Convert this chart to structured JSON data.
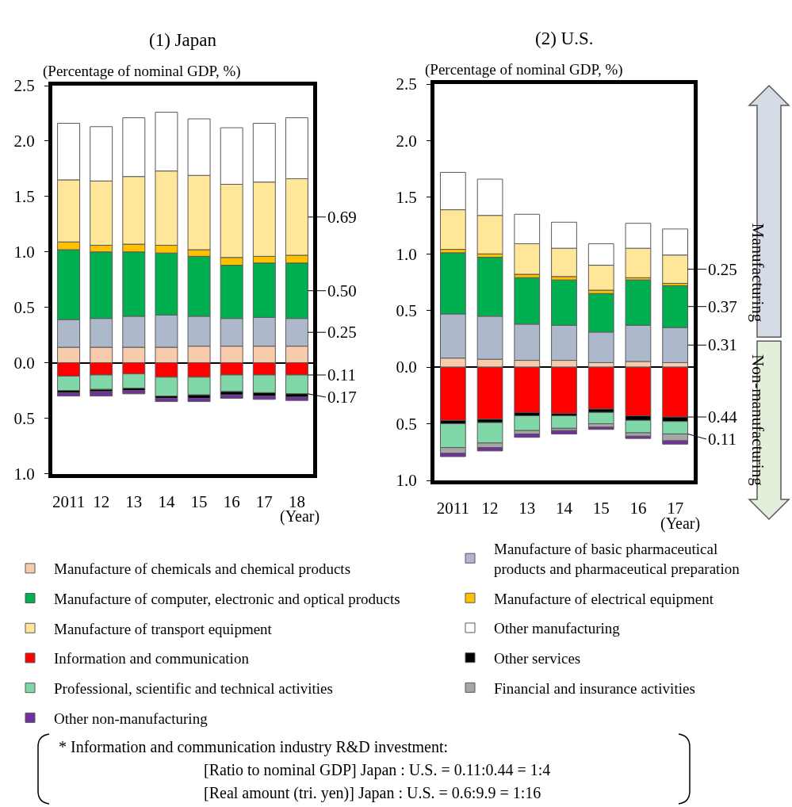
{
  "chart_data": [
    {
      "type": "bar",
      "stacked": true,
      "title": "(1) Japan",
      "ylabel": "(Percentage of nominal GDP, %)",
      "xlabel": "(Year)",
      "categories": [
        "2011",
        "12",
        "13",
        "14",
        "15",
        "16",
        "17",
        "18"
      ],
      "ylim": [
        -1.0,
        2.5
      ],
      "yticks": [
        {
          "value": -1.0,
          "label": "1.0"
        },
        {
          "value": -0.5,
          "label": "0.5"
        },
        {
          "value": 0,
          "label": "0.0"
        },
        0.5,
        {
          "value": 1.0,
          "label": "1.0"
        },
        1.5,
        {
          "value": 2.0,
          "label": "2.0"
        },
        2.5
      ],
      "series": [
        {
          "color": "#f8cbad",
          "values": [
            0.14,
            0.14,
            0.14,
            0.14,
            0.15,
            0.15,
            0.15,
            0.15
          ]
        },
        {
          "color": "#adb9ca",
          "values": [
            0.25,
            0.26,
            0.28,
            0.29,
            0.27,
            0.25,
            0.26,
            0.25
          ],
          "value_labels": [
            null,
            null,
            null,
            null,
            null,
            null,
            null,
            "0.25"
          ]
        },
        {
          "color": "#00b050",
          "values": [
            0.63,
            0.6,
            0.58,
            0.56,
            0.54,
            0.48,
            0.49,
            0.5
          ],
          "value_labels": [
            null,
            null,
            null,
            null,
            null,
            null,
            null,
            "0.50"
          ]
        },
        {
          "color": "#ffc000",
          "values": [
            0.07,
            0.06,
            0.07,
            0.07,
            0.06,
            0.07,
            0.06,
            0.07
          ]
        },
        {
          "color": "#ffe699",
          "values": [
            0.56,
            0.58,
            0.61,
            0.67,
            0.67,
            0.66,
            0.67,
            0.69
          ],
          "value_labels": [
            null,
            null,
            null,
            null,
            null,
            null,
            null,
            "0.69"
          ]
        },
        {
          "color": "#ffffff",
          "values": [
            0.51,
            0.49,
            0.53,
            0.53,
            0.51,
            0.51,
            0.53,
            0.55
          ]
        },
        {
          "color": "#ff0000",
          "values": [
            -0.12,
            -0.11,
            -0.1,
            -0.13,
            -0.13,
            -0.11,
            -0.11,
            -0.11
          ]
        },
        {
          "color": "#80d7a7",
          "values": [
            -0.13,
            -0.13,
            -0.13,
            -0.17,
            -0.16,
            -0.15,
            -0.16,
            -0.17
          ]
        },
        {
          "color": "#000000",
          "values": [
            -0.02,
            -0.02,
            -0.02,
            -0.02,
            -0.03,
            -0.03,
            -0.03,
            -0.03
          ]
        },
        {
          "color": "#7030a0",
          "values": [
            -0.03,
            -0.04,
            -0.03,
            -0.03,
            -0.03,
            -0.03,
            -0.03,
            -0.03
          ]
        }
      ],
      "annotations": [
        {
          "text": "0.11",
          "x": "18",
          "y": -0.11
        },
        {
          "text": "0.17",
          "x": "18",
          "y": -0.28
        }
      ]
    },
    {
      "type": "bar",
      "stacked": true,
      "title": "(2) U.S.",
      "ylabel": "(Percentage of nominal GDP, %)",
      "xlabel": "(Year)",
      "legend": "bottom",
      "categories": [
        "2011",
        "12",
        "13",
        "14",
        "15",
        "16",
        "17"
      ],
      "ylim": [
        -1.0,
        2.5
      ],
      "yticks": [
        {
          "value": -1.0,
          "label": "1.0"
        },
        {
          "value": -0.5,
          "label": "0.5"
        },
        {
          "value": 0,
          "label": "0.0"
        },
        0.5,
        {
          "value": 1.0,
          "label": "1.0"
        },
        1.5,
        {
          "value": 2.0,
          "label": "2.0"
        },
        2.5
      ],
      "series": [
        {
          "name": "Manufacture of chemicals and chemical products",
          "color": "#f8cbad",
          "values": [
            0.08,
            0.07,
            0.06,
            0.06,
            0.04,
            0.05,
            0.04
          ]
        },
        {
          "name": "Manufacture of basic pharmaceutical products and pharmaceutical preparation",
          "color": "#adb9ca",
          "values": [
            0.39,
            0.38,
            0.32,
            0.31,
            0.27,
            0.32,
            0.31
          ],
          "value_labels": [
            null,
            null,
            null,
            null,
            null,
            null,
            "0.31"
          ]
        },
        {
          "name": "Manufacture of computer, electronic and optical products",
          "color": "#00b050",
          "values": [
            0.54,
            0.52,
            0.41,
            0.4,
            0.34,
            0.4,
            0.37
          ],
          "value_labels": [
            null,
            null,
            null,
            null,
            null,
            null,
            "0.37"
          ]
        },
        {
          "name": "Manufacture of electrical equipment",
          "color": "#ffc000",
          "values": [
            0.03,
            0.03,
            0.03,
            0.03,
            0.03,
            0.02,
            0.02
          ]
        },
        {
          "name": "Manufacture of transport equipment",
          "color": "#ffe699",
          "values": [
            0.35,
            0.34,
            0.27,
            0.25,
            0.22,
            0.26,
            0.25
          ],
          "value_labels": [
            null,
            null,
            null,
            null,
            null,
            null,
            "0.25"
          ]
        },
        {
          "name": "Other manufacturing",
          "color": "#ffffff",
          "values": [
            0.33,
            0.32,
            0.26,
            0.23,
            0.19,
            0.22,
            0.23
          ]
        },
        {
          "name": "Information and communication",
          "color": "#ff0000",
          "values": [
            -0.47,
            -0.46,
            -0.4,
            -0.41,
            -0.37,
            -0.43,
            -0.44
          ]
        },
        {
          "name": "Other services",
          "color": "#000000",
          "values": [
            -0.03,
            -0.03,
            -0.03,
            -0.02,
            -0.03,
            -0.04,
            -0.04
          ]
        },
        {
          "name": "Professional, scientific and technical activities",
          "color": "#80d7a7",
          "values": [
            -0.21,
            -0.18,
            -0.13,
            -0.11,
            -0.1,
            -0.11,
            -0.11
          ]
        },
        {
          "name": "Financial and insurance activities",
          "color": "#a6a6a6",
          "values": [
            -0.05,
            -0.04,
            -0.03,
            -0.02,
            -0.03,
            -0.03,
            -0.06
          ]
        },
        {
          "name": "Other non-manufacturing",
          "color": "#7030a0",
          "values": [
            -0.03,
            -0.03,
            -0.03,
            -0.03,
            -0.02,
            -0.02,
            -0.03
          ]
        }
      ],
      "annotations": [
        {
          "text": "0.44",
          "x": "17",
          "y": -0.44
        },
        {
          "text": "0.11",
          "x": "17",
          "y": -0.59
        },
        "Manufacturing",
        "Non-manufacturing",
        "* Information and communication industry R&D investment:",
        "[Ratio to nominal GDP] Japan : U.S. = 0.11:0.44 = 1:4",
        "[Real amount (tri. yen)] Japan : U.S. = 0.6:9.9 = 1:16"
      ]
    }
  ]
}
